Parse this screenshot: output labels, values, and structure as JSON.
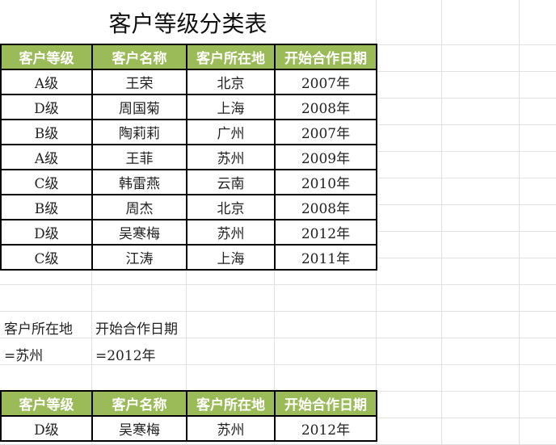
{
  "title": "客户等级分类表",
  "headers": [
    "客户等级",
    "客户名称",
    "客户所在地",
    "开始合作日期"
  ],
  "rows": [
    [
      "A级",
      "王荣",
      "北京",
      "2007年"
    ],
    [
      "D级",
      "周国菊",
      "上海",
      "2008年"
    ],
    [
      "B级",
      "陶莉莉",
      "广州",
      "2007年"
    ],
    [
      "A级",
      "王菲",
      "苏州",
      "2009年"
    ],
    [
      "C级",
      "韩雷燕",
      "云南",
      "2010年"
    ],
    [
      "B级",
      "周杰",
      "北京",
      "2008年"
    ],
    [
      "D级",
      "吴寒梅",
      "苏州",
      "2012年"
    ],
    [
      "C级",
      "江涛",
      "上海",
      "2011年"
    ]
  ],
  "criteria": {
    "labels": [
      "客户所在地",
      "开始合作日期"
    ],
    "values": [
      "=苏州",
      "=2012年"
    ]
  },
  "result": {
    "headers": [
      "客户等级",
      "客户名称",
      "客户所在地",
      "开始合作日期"
    ],
    "rows": [
      [
        "D级",
        "吴寒梅",
        "苏州",
        "2012年"
      ]
    ]
  },
  "colors": {
    "header_bg": "#9bbb59",
    "header_text": "#ffffff",
    "border": "#000000"
  }
}
